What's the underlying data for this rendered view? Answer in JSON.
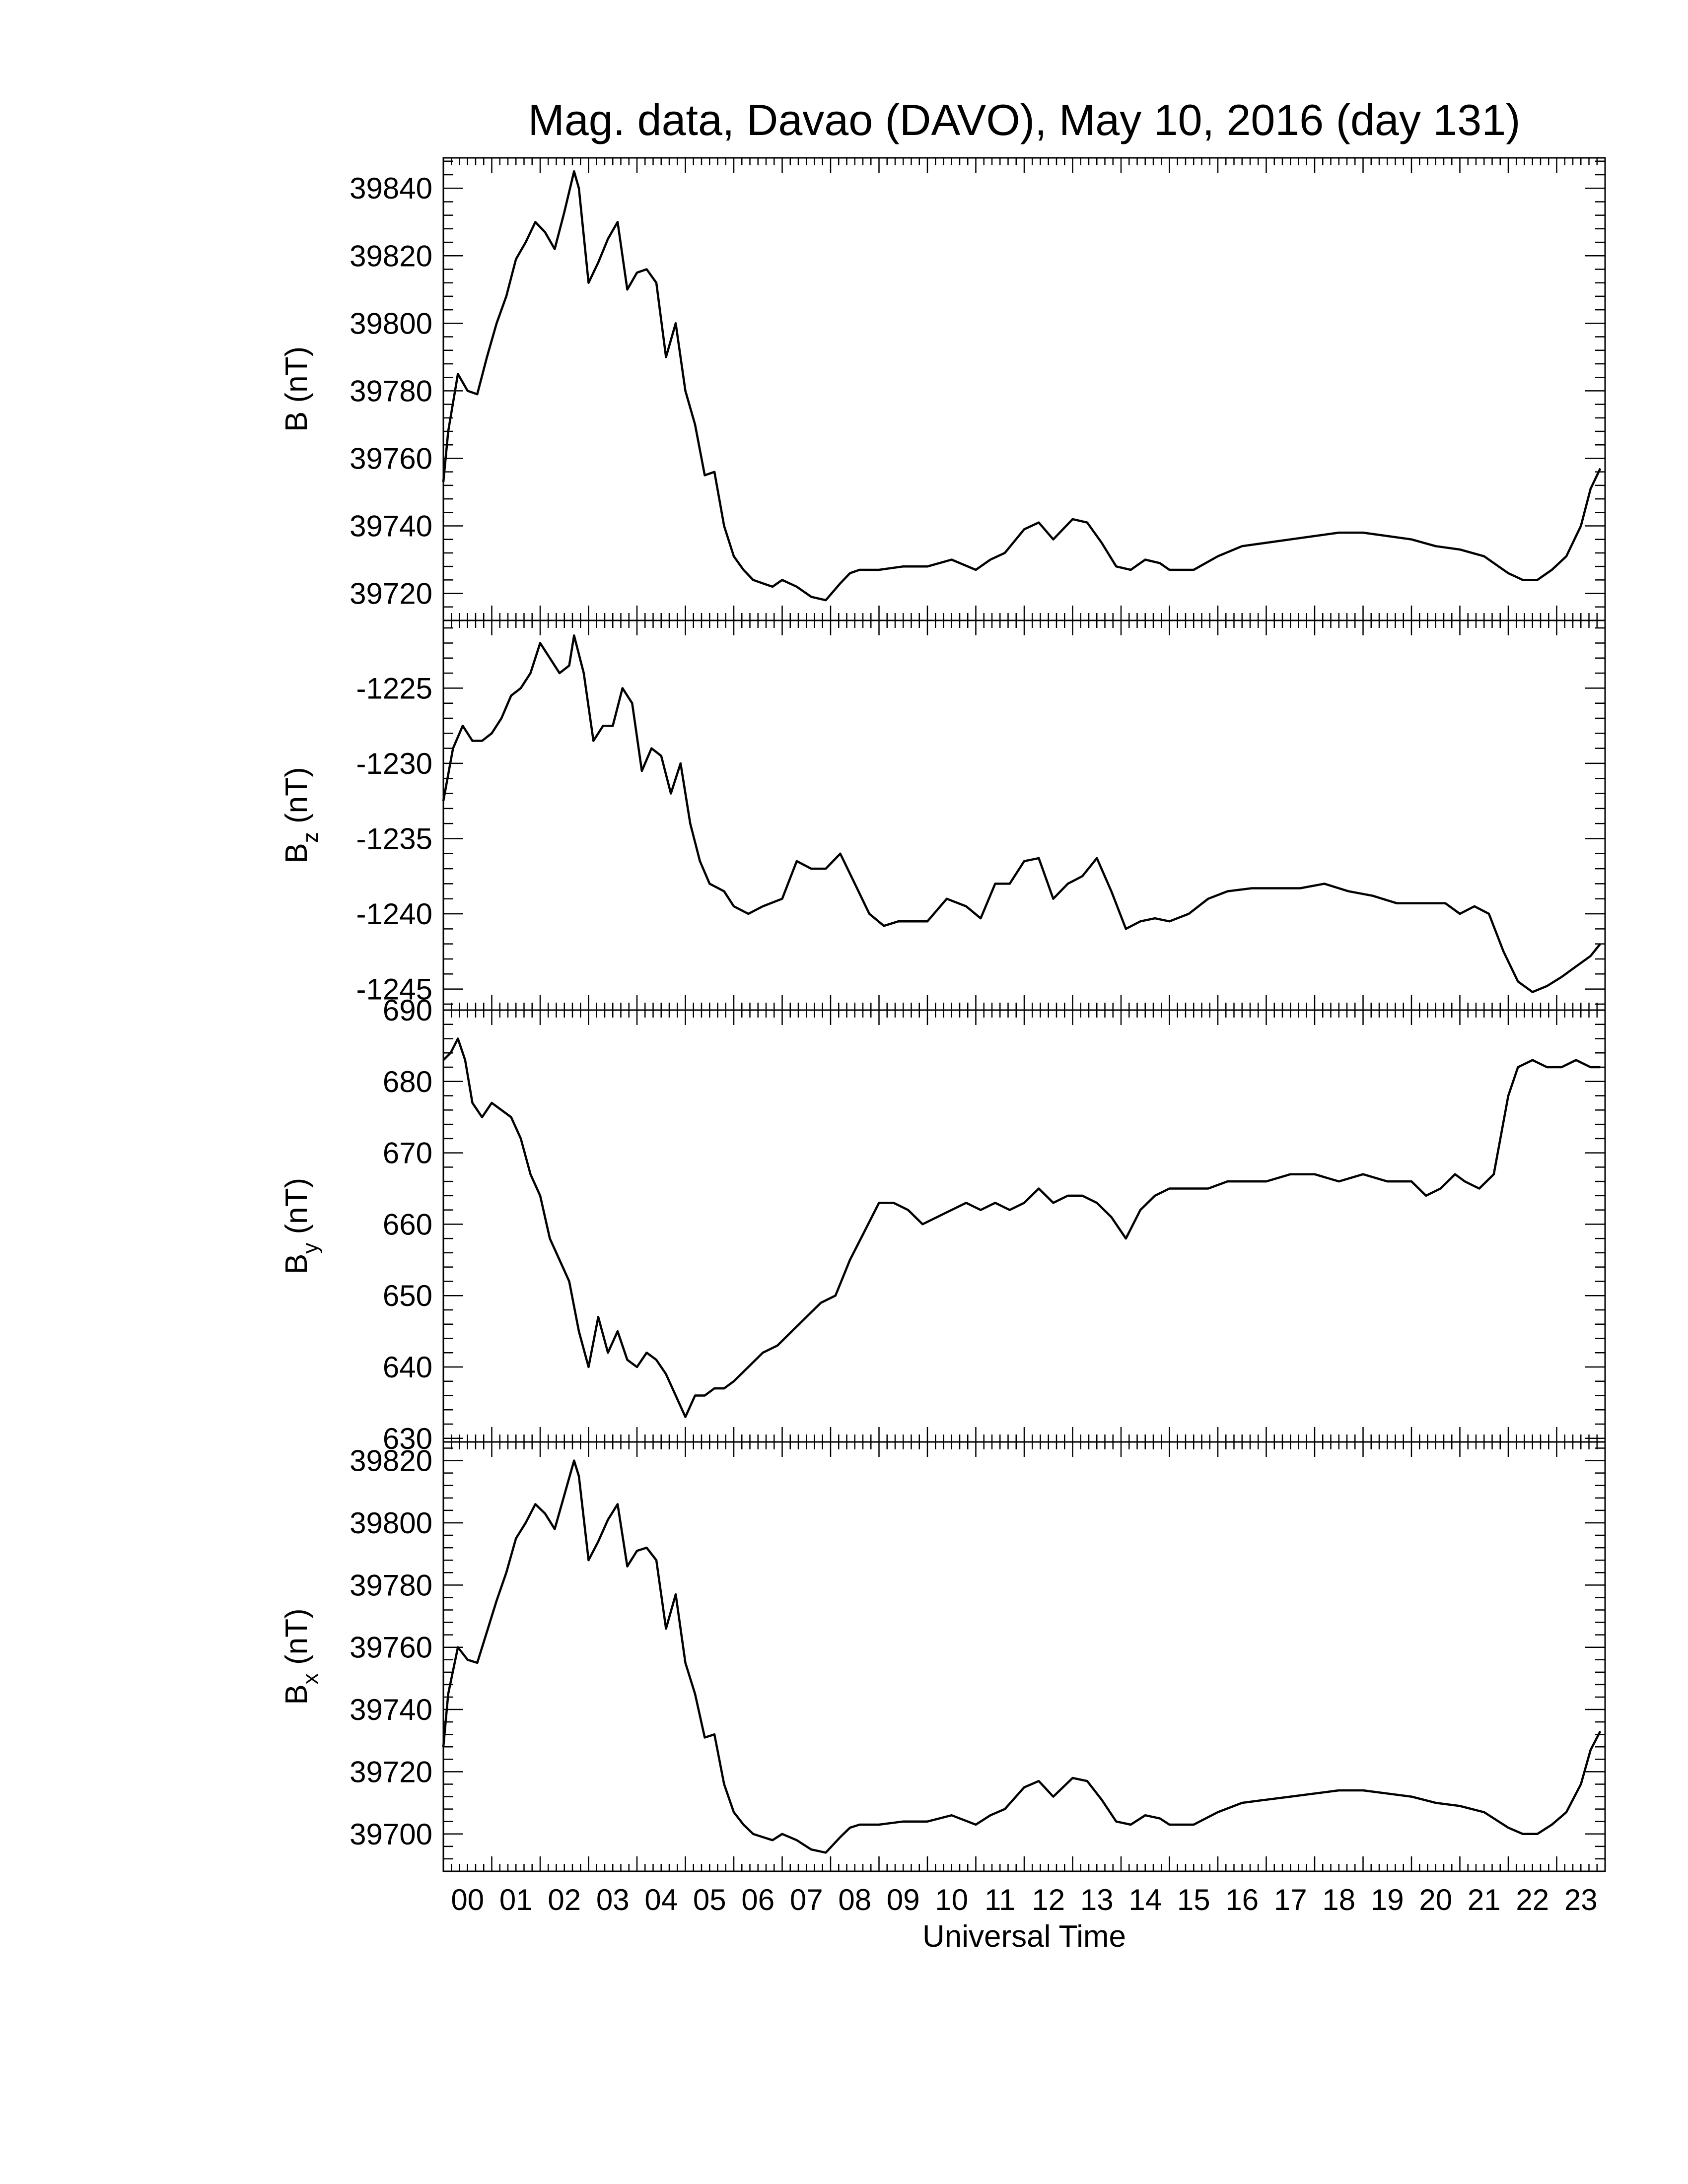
{
  "figure": {
    "title": "Mag. data, Davao (DAVO), May 10, 2016 (day 131)",
    "xlabel": "Universal Time",
    "x_tick_labels": [
      "00",
      "01",
      "02",
      "03",
      "04",
      "05",
      "06",
      "07",
      "08",
      "09",
      "10",
      "11",
      "12",
      "13",
      "14",
      "15",
      "16",
      "17",
      "18",
      "19",
      "20",
      "21",
      "22",
      "23"
    ],
    "line_color": "#000000"
  },
  "chart_data": [
    {
      "type": "line",
      "panel": "B",
      "ylabel": "B (nT)",
      "ylabel_main": "B",
      "ylabel_sub": "",
      "ylabel_unit": " (nT)",
      "ylim": [
        39712,
        39849
      ],
      "y_ticks": [
        39720,
        39740,
        39760,
        39780,
        39800,
        39820,
        39840
      ],
      "y_tick_labels": [
        "39720",
        "39740",
        "39760",
        "39780",
        "39800",
        "39820",
        "39840"
      ],
      "x": [
        0,
        0.1,
        0.3,
        0.5,
        0.7,
        0.9,
        1.1,
        1.3,
        1.5,
        1.7,
        1.9,
        2.1,
        2.3,
        2.5,
        2.7,
        2.8,
        3.0,
        3.2,
        3.4,
        3.6,
        3.8,
        4.0,
        4.2,
        4.4,
        4.6,
        4.8,
        5.0,
        5.2,
        5.4,
        5.6,
        5.8,
        6.0,
        6.2,
        6.4,
        6.6,
        6.8,
        7.0,
        7.3,
        7.6,
        7.9,
        8.2,
        8.4,
        8.6,
        9.0,
        9.5,
        10.0,
        10.5,
        11.0,
        11.3,
        11.6,
        12.0,
        12.3,
        12.6,
        13.0,
        13.3,
        13.6,
        13.9,
        14.2,
        14.5,
        14.8,
        15.0,
        15.5,
        16.0,
        16.5,
        17.0,
        17.5,
        18.0,
        18.5,
        19.0,
        19.5,
        20.0,
        20.5,
        21.0,
        21.5,
        22.0,
        22.3,
        22.6,
        22.9,
        23.2,
        23.5,
        23.7,
        23.9
      ],
      "y": [
        39753,
        39768,
        39785,
        39780,
        39779,
        39790,
        39800,
        39808,
        39819,
        39824,
        39830,
        39827,
        39822,
        39833,
        39845,
        39840,
        39812,
        39818,
        39825,
        39830,
        39810,
        39815,
        39816,
        39812,
        39790,
        39800,
        39780,
        39770,
        39755,
        39756,
        39740,
        39731,
        39727,
        39724,
        39723,
        39722,
        39724,
        39722,
        39719,
        39718,
        39723,
        39726,
        39727,
        39727,
        39728,
        39728,
        39730,
        39727,
        39730,
        39732,
        39739,
        39741,
        39736,
        39742,
        39741,
        39735,
        39728,
        39727,
        39730,
        39729,
        39727,
        39727,
        39731,
        39734,
        39735,
        39736,
        39737,
        39738,
        39738,
        39737,
        39736,
        39734,
        39733,
        39731,
        39726,
        39724,
        39724,
        39727,
        39731,
        39740,
        39751,
        39757
      ]
    },
    {
      "type": "line",
      "panel": "Bz",
      "ylabel": "Bz (nT)",
      "ylabel_main": "B",
      "ylabel_sub": "z",
      "ylabel_unit": " (nT)",
      "ylim": [
        -1246.4,
        -1220.5
      ],
      "y_ticks": [
        -1245,
        -1240,
        -1235,
        -1230,
        -1225
      ],
      "y_tick_labels": [
        "-1245",
        "-1240",
        "-1235",
        "-1230",
        "-1225"
      ],
      "x": [
        0,
        0.2,
        0.4,
        0.6,
        0.8,
        1.0,
        1.2,
        1.4,
        1.6,
        1.8,
        2.0,
        2.2,
        2.4,
        2.6,
        2.7,
        2.9,
        3.1,
        3.3,
        3.5,
        3.7,
        3.9,
        4.1,
        4.3,
        4.5,
        4.7,
        4.9,
        5.1,
        5.3,
        5.5,
        5.8,
        6.0,
        6.3,
        6.6,
        7.0,
        7.3,
        7.6,
        7.9,
        8.2,
        8.5,
        8.8,
        9.1,
        9.4,
        9.7,
        10.0,
        10.4,
        10.8,
        11.1,
        11.4,
        11.7,
        12.0,
        12.3,
        12.6,
        12.9,
        13.2,
        13.5,
        13.8,
        14.1,
        14.4,
        14.7,
        15.0,
        15.4,
        15.8,
        16.2,
        16.7,
        17.2,
        17.7,
        18.2,
        18.7,
        19.2,
        19.7,
        20.2,
        20.7,
        21.0,
        21.3,
        21.6,
        21.9,
        22.2,
        22.5,
        22.8,
        23.1,
        23.4,
        23.7,
        23.9
      ],
      "y": [
        -1232.5,
        -1229,
        -1227.5,
        -1228.5,
        -1228.5,
        -1228,
        -1227,
        -1225.5,
        -1225,
        -1224,
        -1222,
        -1223,
        -1224,
        -1223.5,
        -1221.5,
        -1224,
        -1228.5,
        -1227.5,
        -1227.5,
        -1225,
        -1226,
        -1230.5,
        -1229,
        -1229.5,
        -1232,
        -1230,
        -1234,
        -1236.5,
        -1238,
        -1238.5,
        -1239.5,
        -1240,
        -1239.5,
        -1239,
        -1236.5,
        -1237,
        -1237,
        -1236,
        -1238,
        -1240,
        -1240.8,
        -1240.5,
        -1240.5,
        -1240.5,
        -1239,
        -1239.5,
        -1240.3,
        -1238,
        -1238,
        -1236.5,
        -1236.3,
        -1239,
        -1238,
        -1237.5,
        -1236.3,
        -1238.5,
        -1241,
        -1240.5,
        -1240.3,
        -1240.5,
        -1240,
        -1239,
        -1238.5,
        -1238.3,
        -1238.3,
        -1238.3,
        -1238,
        -1238.5,
        -1238.8,
        -1239.3,
        -1239.3,
        -1239.3,
        -1240,
        -1239.5,
        -1240,
        -1242.5,
        -1244.5,
        -1245.2,
        -1244.8,
        -1244.2,
        -1243.5,
        -1242.8,
        -1242
      ]
    },
    {
      "type": "line",
      "panel": "By",
      "ylabel": "By (nT)",
      "ylabel_main": "B",
      "ylabel_sub": "y",
      "ylabel_unit": " (nT)",
      "ylim": [
        629.5,
        690
      ],
      "y_ticks": [
        630,
        640,
        650,
        660,
        670,
        680,
        690
      ],
      "y_tick_labels": [
        "630",
        "640",
        "650",
        "660",
        "670",
        "680",
        "690"
      ],
      "x": [
        0,
        0.15,
        0.3,
        0.45,
        0.6,
        0.8,
        1.0,
        1.2,
        1.4,
        1.6,
        1.8,
        2.0,
        2.2,
        2.4,
        2.6,
        2.8,
        3.0,
        3.2,
        3.4,
        3.6,
        3.8,
        4.0,
        4.2,
        4.4,
        4.6,
        4.8,
        5.0,
        5.2,
        5.4,
        5.6,
        5.8,
        6.0,
        6.3,
        6.6,
        6.9,
        7.2,
        7.5,
        7.8,
        8.1,
        8.4,
        8.7,
        9.0,
        9.3,
        9.6,
        9.9,
        10.2,
        10.5,
        10.8,
        11.1,
        11.4,
        11.7,
        12.0,
        12.3,
        12.6,
        12.9,
        13.2,
        13.5,
        13.8,
        14.1,
        14.4,
        14.7,
        15.0,
        15.4,
        15.8,
        16.2,
        16.6,
        17.0,
        17.5,
        18.0,
        18.5,
        19.0,
        19.5,
        20.0,
        20.3,
        20.6,
        20.9,
        21.1,
        21.4,
        21.7,
        22.0,
        22.2,
        22.5,
        22.8,
        23.1,
        23.4,
        23.7,
        23.9
      ],
      "y": [
        683,
        684,
        686,
        683,
        677,
        675,
        677,
        676,
        675,
        672,
        667,
        664,
        658,
        655,
        652,
        645,
        640,
        647,
        642,
        645,
        641,
        640,
        642,
        641,
        639,
        636,
        633,
        636,
        636,
        637,
        637,
        638,
        640,
        642,
        643,
        645,
        647,
        649,
        650,
        655,
        659,
        663,
        663,
        662,
        660,
        661,
        662,
        663,
        662,
        663,
        662,
        663,
        665,
        663,
        664,
        664,
        663,
        661,
        658,
        662,
        664,
        665,
        665,
        665,
        666,
        666,
        666,
        667,
        667,
        666,
        667,
        666,
        666,
        664,
        665,
        667,
        666,
        665,
        667,
        678,
        682,
        683,
        682,
        682,
        683,
        682,
        682
      ]
    },
    {
      "type": "line",
      "panel": "Bx",
      "ylabel": "Bx (nT)",
      "ylabel_main": "B",
      "ylabel_sub": "x",
      "ylabel_unit": " (nT)",
      "ylim": [
        39688,
        39826
      ],
      "y_ticks": [
        39700,
        39720,
        39740,
        39760,
        39780,
        39800,
        39820
      ],
      "y_tick_labels": [
        "39700",
        "39720",
        "39740",
        "39760",
        "39780",
        "39800",
        "39820"
      ],
      "x": [
        0,
        0.1,
        0.3,
        0.5,
        0.7,
        0.9,
        1.1,
        1.3,
        1.5,
        1.7,
        1.9,
        2.1,
        2.3,
        2.5,
        2.7,
        2.8,
        3.0,
        3.2,
        3.4,
        3.6,
        3.8,
        4.0,
        4.2,
        4.4,
        4.6,
        4.8,
        5.0,
        5.2,
        5.4,
        5.6,
        5.8,
        6.0,
        6.2,
        6.4,
        6.6,
        6.8,
        7.0,
        7.3,
        7.6,
        7.9,
        8.2,
        8.4,
        8.6,
        9.0,
        9.5,
        10.0,
        10.5,
        11.0,
        11.3,
        11.6,
        12.0,
        12.3,
        12.6,
        13.0,
        13.3,
        13.6,
        13.9,
        14.2,
        14.5,
        14.8,
        15.0,
        15.5,
        16.0,
        16.5,
        17.0,
        17.5,
        18.0,
        18.5,
        19.0,
        19.5,
        20.0,
        20.5,
        21.0,
        21.5,
        22.0,
        22.3,
        22.6,
        22.9,
        23.2,
        23.5,
        23.7,
        23.9
      ],
      "y": [
        39728,
        39745,
        39760,
        39756,
        39755,
        39765,
        39775,
        39784,
        39795,
        39800,
        39806,
        39803,
        39798,
        39809,
        39820,
        39815,
        39788,
        39794,
        39801,
        39806,
        39786,
        39791,
        39792,
        39788,
        39766,
        39777,
        39755,
        39745,
        39731,
        39732,
        39716,
        39707,
        39703,
        39700,
        39699,
        39698,
        39700,
        39698,
        39695,
        39694,
        39699,
        39702,
        39703,
        39703,
        39704,
        39704,
        39706,
        39703,
        39706,
        39708,
        39715,
        39717,
        39712,
        39718,
        39717,
        39711,
        39704,
        39703,
        39706,
        39705,
        39703,
        39703,
        39707,
        39710,
        39711,
        39712,
        39713,
        39714,
        39714,
        39713,
        39712,
        39710,
        39709,
        39707,
        39702,
        39700,
        39700,
        39703,
        39707,
        39716,
        39727,
        39733
      ]
    }
  ]
}
